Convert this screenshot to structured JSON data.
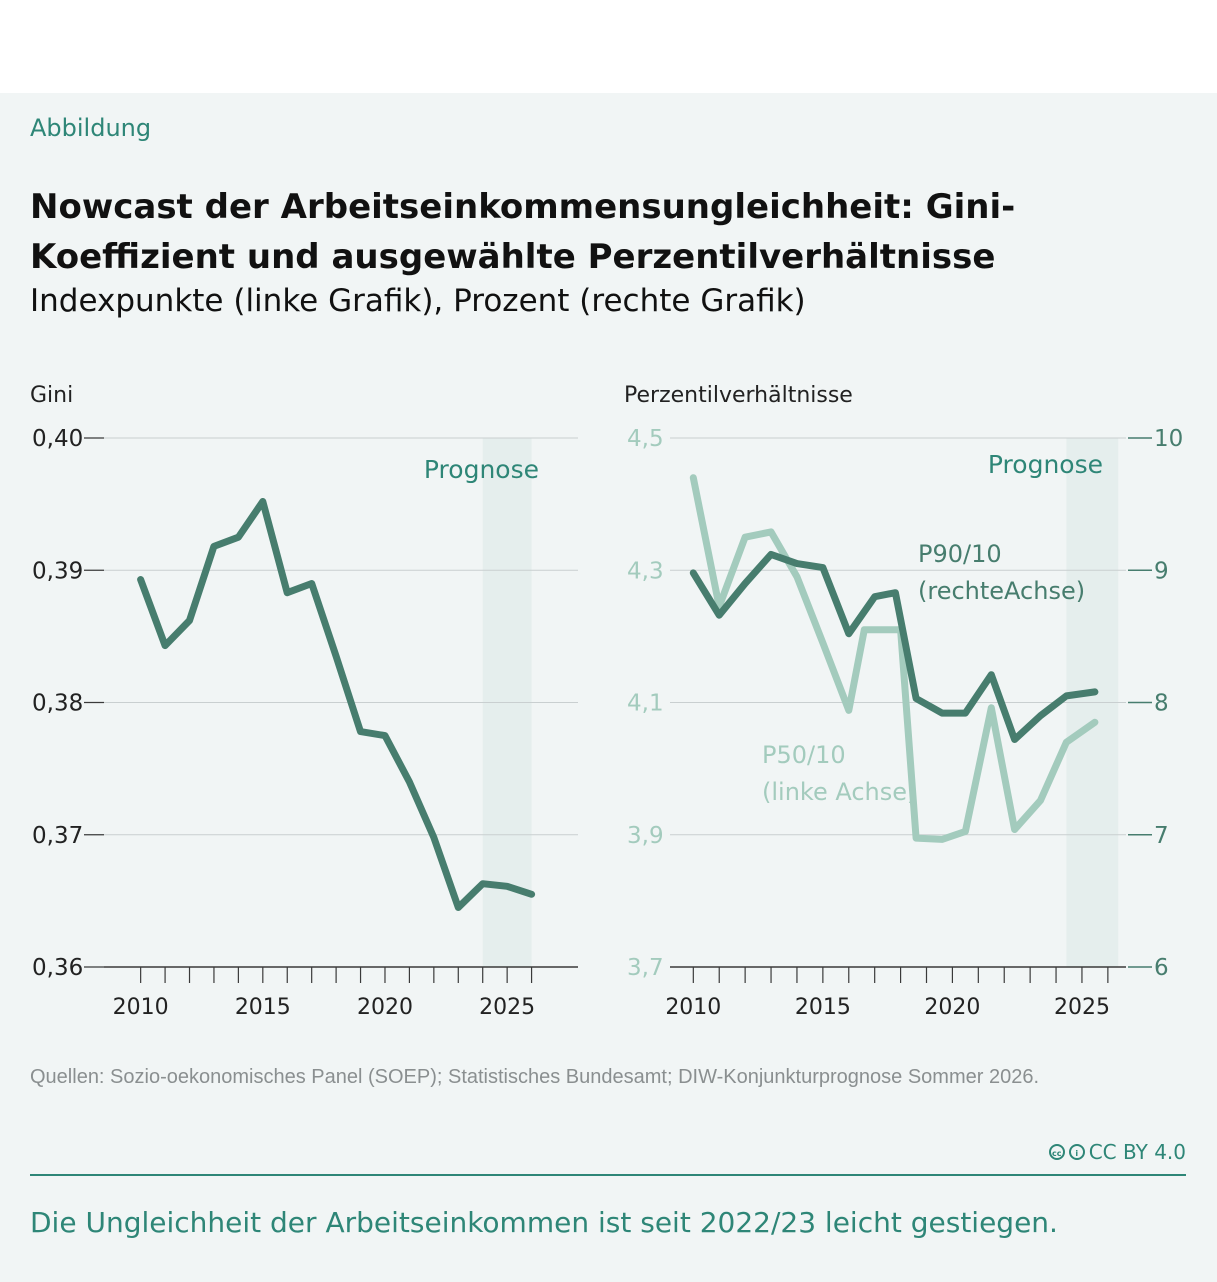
{
  "header": {
    "label": "Abbildung",
    "title": "Nowcast der Arbeitseinkommensungleichheit: Gini-Koeffizient und ausgewählte Perzentilverhältnisse",
    "subtitle": "Indexpunkte (linke Grafik), Prozent (rechte Grafik)"
  },
  "footer": {
    "source": "Quellen: Sozio-oekonomisches Panel (SOEP); Statistisches Bundesamt; DIW-Konjunkturprognose Sommer 2026.",
    "license": "CC BY 4.0",
    "takeaway": "Die Ungleichheit der Arbeitseinkommen ist seit 2022/23 leicht gestiegen."
  },
  "colors": {
    "dark_green": "#477d6e",
    "light_green": "#a3cbbd",
    "accent": "#2e8677",
    "forecast_band": "#e5eeed"
  },
  "chart_data": [
    {
      "type": "line",
      "ylabel": "Gini",
      "xlim": [
        2008.5,
        2027.9
      ],
      "ylim": [
        0.36,
        0.4
      ],
      "yticks": [
        0.36,
        0.37,
        0.38,
        0.39,
        0.4
      ],
      "ytick_labels": [
        "0,36",
        "0,37",
        "0,38",
        "0,39",
        "0,40"
      ],
      "xticks": [
        2010,
        2011,
        2012,
        2013,
        2014,
        2015,
        2016,
        2017,
        2018,
        2019,
        2020,
        2021,
        2022,
        2023,
        2024,
        2025,
        2026
      ],
      "xtick_labels": [
        2010,
        2015,
        2020,
        2025
      ],
      "forecast": {
        "label": "Prognose",
        "from": 2024,
        "to": 2026
      },
      "series": [
        {
          "color": "#477d6e",
          "x": [
            2010,
            2011,
            2012,
            2013,
            2014,
            2015,
            2016,
            2017,
            2018,
            2019,
            2020,
            2021,
            2022,
            2023,
            2024,
            2025,
            2026
          ],
          "values": [
            0.3893,
            0.3843,
            0.3862,
            0.3918,
            0.3925,
            0.3952,
            0.3883,
            0.389,
            0.3835,
            0.3778,
            0.3775,
            0.374,
            0.3698,
            0.3645,
            0.3663,
            0.3661,
            0.3655
          ]
        }
      ]
    },
    {
      "type": "line",
      "ylabel": "Perzentilverhältnisse",
      "xlim": [
        2009.1,
        2026.7
      ],
      "ylim": [
        3.7,
        4.5
      ],
      "ylim_right": [
        6,
        10
      ],
      "yticks": [
        3.7,
        3.9,
        4.1,
        4.3,
        4.5
      ],
      "ytick_labels": [
        "3,7",
        "3,9",
        "4,1",
        "4,3",
        "4,5"
      ],
      "yticks_right": [
        6,
        7,
        8,
        9,
        10
      ],
      "ytick_labels_right": [
        "6",
        "7",
        "8",
        "9",
        "10"
      ],
      "xticks": [
        2010,
        2011,
        2012,
        2013,
        2014,
        2015,
        2016,
        2017,
        2018,
        2019,
        2020,
        2021,
        2022,
        2023,
        2024,
        2025,
        2026
      ],
      "xtick_labels": [
        2010,
        2015,
        2020,
        2025
      ],
      "forecast": {
        "label": "Prognose",
        "from": 2024.4,
        "to": 2026.4
      },
      "series": [
        {
          "name": "P50/10 (linke Achse)",
          "axis": "left",
          "color": "#a3cbbd",
          "x": [
            2010,
            2011,
            2012,
            2013,
            2014,
            2015,
            2016,
            2016.6,
            2017.4,
            2018,
            2018.6,
            2019.6,
            2020.5,
            2021.5,
            2022.4,
            2023.4,
            2024.4,
            2025.5
          ],
          "values": [
            4.44,
            4.245,
            4.35,
            4.358,
            4.29,
            4.19,
            4.088,
            4.21,
            4.21,
            4.21,
            3.895,
            3.893,
            3.905,
            4.092,
            3.908,
            3.952,
            4.04,
            4.07
          ]
        },
        {
          "name": "P90/10 (rechteAchse)",
          "axis": "right",
          "color": "#477d6e",
          "x": [
            2010,
            2011,
            2012,
            2013,
            2014,
            2015,
            2016,
            2017,
            2017.8,
            2018.6,
            2019.6,
            2020.5,
            2021.5,
            2022.4,
            2023.4,
            2024.4,
            2025.5
          ],
          "values": [
            8.98,
            8.66,
            8.9,
            9.12,
            9.05,
            9.02,
            8.52,
            8.8,
            8.83,
            8.03,
            7.92,
            7.92,
            8.21,
            7.72,
            7.9,
            8.05,
            8.08
          ]
        }
      ]
    }
  ]
}
